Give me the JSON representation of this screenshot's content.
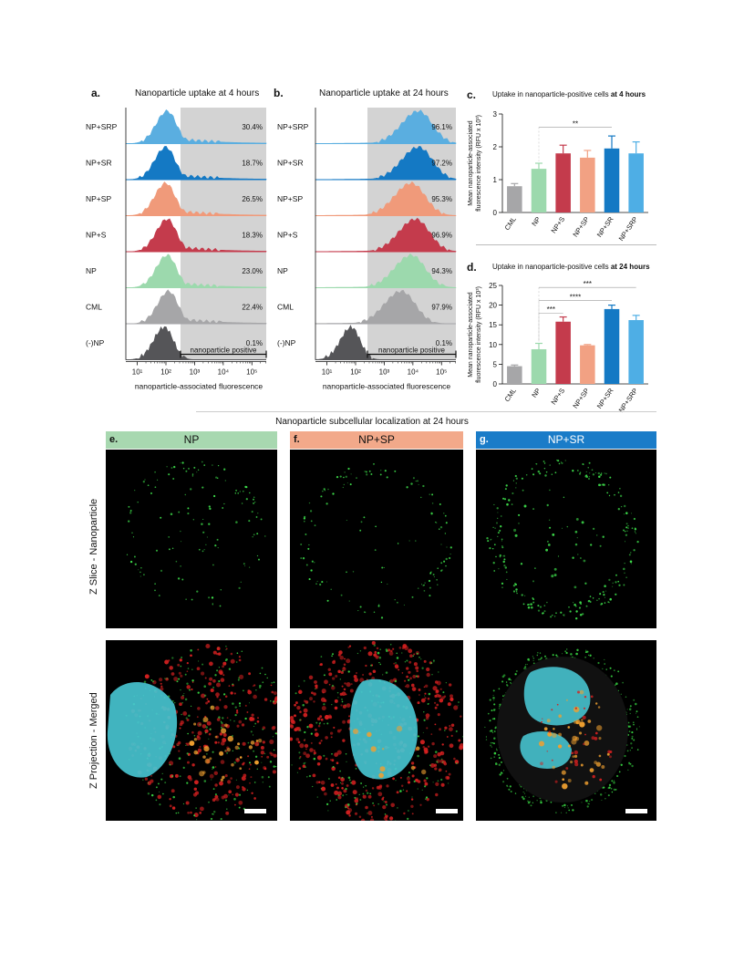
{
  "panels": {
    "a": {
      "letter": "a.",
      "title": "Nanoparticle uptake at 4 hours",
      "rows": [
        "NP+SRP",
        "NP+SR",
        "NP+SP",
        "NP+S",
        "NP",
        "CML",
        "(-)NP"
      ],
      "percents": [
        "30.4%",
        "18.7%",
        "26.5%",
        "18.3%",
        "23.0%",
        "22.4%",
        "0.1%"
      ],
      "gate_label": "nanoparticle positive",
      "xlabel": "nanoparticle-associated fluorescence",
      "ticks": [
        "10¹",
        "10²",
        "10³",
        "10⁴",
        "10⁵"
      ]
    },
    "b": {
      "letter": "b.",
      "title": "Nanoparticle uptake at 24 hours",
      "rows": [
        "NP+SRP",
        "NP+SR",
        "NP+SP",
        "NP+S",
        "NP",
        "CML",
        "(-)NP"
      ],
      "percents": [
        "96.1%",
        "97.2%",
        "95.3%",
        "96.9%",
        "94.3%",
        "97.9%",
        "0.1%"
      ],
      "gate_label": "nanoparticle positive",
      "xlabel": "nanoparticle-associated fluorescence",
      "ticks": [
        "10¹",
        "10²",
        "10³",
        "10⁴",
        "10⁵"
      ]
    },
    "c": {
      "letter": "c.",
      "title_pre": "Uptake in nanoparticle-positive cells ",
      "title_bold": "at 4 hours",
      "ylabel1": "Mean nanoparticle-associated",
      "ylabel2": "fluorescence intensity (RFU x 10³)",
      "sig": [
        "**"
      ]
    },
    "d": {
      "letter": "d.",
      "title_pre": "Uptake in nanoparticle-positive cells ",
      "title_bold": "at 24 hours",
      "ylabel1": "Mean nanoparticle-associated",
      "ylabel2": "fluorescence intensity (RFU x 10³)",
      "sig": [
        "***",
        "****",
        "***"
      ]
    },
    "micro": {
      "title": "Nanoparticle subcellular localization at 24 hours",
      "row1": "Z Slice - Nanoparticle",
      "row2": "Z Projection - Merged",
      "cols": [
        {
          "letter": "e.",
          "label": "NP",
          "color": "#a8d8b0"
        },
        {
          "letter": "f.",
          "label": "NP+SP",
          "color": "#f2a98a"
        },
        {
          "letter": "g.",
          "label": "NP+SR",
          "color": "#1a7cc8"
        }
      ]
    }
  },
  "chart_data": [
    {
      "type": "bar",
      "title": "Uptake in nanoparticle-positive cells at 4 hours",
      "ylabel": "Mean nanoparticle-associated fluorescence intensity (RFU x 10³)",
      "categories": [
        "CML",
        "NP",
        "NP+S",
        "NP+SP",
        "NP+SR",
        "NP+SRP"
      ],
      "values": [
        0.8,
        1.33,
        1.8,
        1.67,
        1.95,
        1.8
      ],
      "errors": [
        0.08,
        0.17,
        0.25,
        0.22,
        0.38,
        0.35
      ],
      "colors": [
        "#a6a6a8",
        "#9cd9ad",
        "#c43b4c",
        "#f2a183",
        "#1479c4",
        "#4eaee5"
      ],
      "ylim": [
        0,
        3
      ],
      "yticks": [
        "0",
        "1",
        "2",
        "3"
      ],
      "comparisons": [
        {
          "from": "NP",
          "to": "NP+SR",
          "label": "**"
        }
      ]
    },
    {
      "type": "bar",
      "title": "Uptake in nanoparticle-positive cells at 24 hours",
      "ylabel": "Mean nanoparticle-associated fluorescence intensity (RFU x 10³)",
      "categories": [
        "CML",
        "NP",
        "NP+S",
        "NP+SP",
        "NP+SR",
        "NP+SRP"
      ],
      "values": [
        4.5,
        8.8,
        15.8,
        9.8,
        19.0,
        16.2
      ],
      "errors": [
        0.3,
        1.5,
        1.2,
        0.2,
        1.0,
        1.2
      ],
      "colors": [
        "#a6a6a8",
        "#9cd9ad",
        "#c43b4c",
        "#f2a183",
        "#1479c4",
        "#4eaee5"
      ],
      "ylim": [
        0,
        25
      ],
      "yticks": [
        "0",
        "5",
        "10",
        "15",
        "20",
        "25"
      ],
      "comparisons": [
        {
          "from": "NP",
          "to": "NP+SRP",
          "label": "***"
        },
        {
          "from": "NP",
          "to": "NP+SR",
          "label": "****"
        },
        {
          "from": "NP",
          "to": "NP+S",
          "label": "***"
        }
      ]
    }
  ],
  "histograms": {
    "colors": [
      "#5aaee0",
      "#1479c4",
      "#f09a7a",
      "#c43b4c",
      "#9cd9ad",
      "#a6a6a8",
      "#555558"
    ],
    "peaks_4h": [
      2.05,
      2.0,
      2.0,
      2.05,
      2.05,
      2.1,
      1.95
    ],
    "peaks_24h": [
      4.2,
      4.2,
      3.95,
      4.1,
      3.95,
      3.6,
      1.85
    ]
  }
}
